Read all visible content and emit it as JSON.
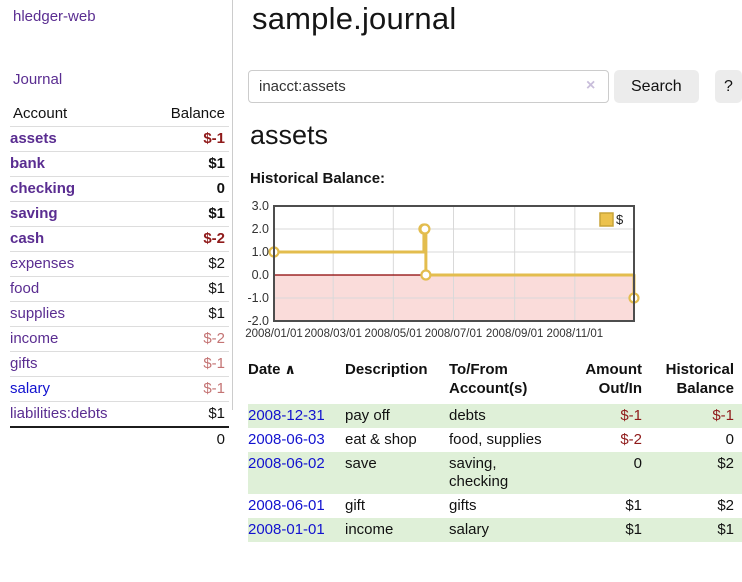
{
  "app": {
    "brand": "hledger-web"
  },
  "sidebar": {
    "nav_journal": "Journal",
    "accounts": {
      "col_account": "Account",
      "col_balance": "Balance",
      "rows": [
        {
          "name": "assets",
          "level": 1,
          "bold": true,
          "link_color": "purple",
          "balance": "$-1",
          "balance_class": "neg b"
        },
        {
          "name": "bank",
          "level": 2,
          "bold": true,
          "link_color": "purple",
          "balance": "$1",
          "balance_class": "b"
        },
        {
          "name": "checking",
          "level": 3,
          "bold": true,
          "link_color": "purple",
          "balance": "0",
          "balance_class": "b"
        },
        {
          "name": "saving",
          "level": 3,
          "bold": true,
          "link_color": "purple",
          "balance": "$1",
          "balance_class": "b"
        },
        {
          "name": "cash",
          "level": 2,
          "bold": true,
          "link_color": "purple",
          "balance": "$-2",
          "balance_class": "neg b"
        },
        {
          "name": "expenses",
          "level": 1,
          "bold": false,
          "link_color": "purple",
          "balance": "$2",
          "balance_class": ""
        },
        {
          "name": "food",
          "level": 2,
          "bold": false,
          "link_color": "purple",
          "balance": "$1",
          "balance_class": ""
        },
        {
          "name": "supplies",
          "level": 2,
          "bold": false,
          "link_color": "purple",
          "balance": "$1",
          "balance_class": ""
        },
        {
          "name": "income",
          "level": 1,
          "bold": false,
          "link_color": "purple",
          "balance": "$-2",
          "balance_class": "neg-light"
        },
        {
          "name": "gifts",
          "level": 2,
          "bold": false,
          "link_color": "purple",
          "balance": "$-1",
          "balance_class": "neg-light"
        },
        {
          "name": "salary",
          "level": 2,
          "bold": false,
          "link_color": "blue",
          "balance": "$-1",
          "balance_class": "neg-light"
        },
        {
          "name": "liabilities:debts",
          "level": 1,
          "bold": false,
          "link_color": "purple",
          "balance": "$1",
          "balance_class": ""
        }
      ],
      "total": "0"
    }
  },
  "main": {
    "title": "sample.journal",
    "search": {
      "value": "inacct:assets",
      "clear": "×",
      "search_button": "Search",
      "help_button": "?"
    },
    "heading": "assets",
    "chart_title": "Historical Balance:"
  },
  "chart_data": {
    "type": "line",
    "step": true,
    "title": "Historical Balance",
    "series": [
      {
        "name": "$",
        "points": [
          {
            "date": "2008-01-01",
            "value": 1
          },
          {
            "date": "2008-06-01",
            "value": 2
          },
          {
            "date": "2008-06-02",
            "value": 2
          },
          {
            "date": "2008-06-03",
            "value": 0
          },
          {
            "date": "2008-12-31",
            "value": -1
          }
        ]
      }
    ],
    "x_start": "2008-01-01",
    "x_end": "2008-12-31",
    "x_tick_labels": [
      "2008/01/01",
      "2008/03/01",
      "2008/05/01",
      "2008/07/01",
      "2008/09/01",
      "2008/11/01"
    ],
    "x_tick_days": [
      0,
      60,
      121,
      182,
      244,
      305
    ],
    "y_ticks": [
      3.0,
      2.0,
      1.0,
      0.0,
      -1.0,
      -2.0
    ],
    "ylim": [
      -2,
      3
    ],
    "grid": true,
    "legend": {
      "label": "$",
      "position": "top-right"
    },
    "colors": {
      "line": "#e3bd4e",
      "marker_fill": "#ffffff",
      "negative_fill": "#fadcda",
      "zero_line": "#8b0000",
      "border": "#4d4d4d",
      "grid": "#d9d9d9",
      "legend_fill": "#ecc24d",
      "legend_stroke": "#c8a438"
    }
  },
  "transactions": {
    "headers": [
      "Date",
      "Description",
      "To/From Account(s)",
      "Amount Out/In",
      "Historical Balance"
    ],
    "sort_icon": "∧",
    "rows": [
      {
        "date": "2008-12-31",
        "description": "pay off",
        "accounts": "debts",
        "amount": "$-1",
        "amount_class": "neg",
        "balance": "$-1",
        "balance_class": "neg",
        "striped": true
      },
      {
        "date": "2008-06-03",
        "description": "eat & shop",
        "accounts": "food, supplies",
        "amount": "$-2",
        "amount_class": "neg",
        "balance": "0",
        "balance_class": "",
        "striped": false
      },
      {
        "date": "2008-06-02",
        "description": "save",
        "accounts": "saving,\nchecking",
        "amount": "0",
        "amount_class": "",
        "balance": "$2",
        "balance_class": "",
        "striped": true
      },
      {
        "date": "2008-06-01",
        "description": "gift",
        "accounts": "gifts",
        "amount": "$1",
        "amount_class": "",
        "balance": "$2",
        "balance_class": "",
        "striped": false
      },
      {
        "date": "2008-01-01",
        "description": "income",
        "accounts": "salary",
        "amount": "$1",
        "amount_class": "",
        "balance": "$1",
        "balance_class": "",
        "striped": true
      }
    ]
  },
  "colors": {
    "link_purple": "#5a2d91",
    "link_blue": "#1212cf",
    "negative": "#8f1a1a",
    "negative_light": "#c47474",
    "stripe_green": "#dff0d8",
    "accent_gold": "#e3bd4e"
  }
}
